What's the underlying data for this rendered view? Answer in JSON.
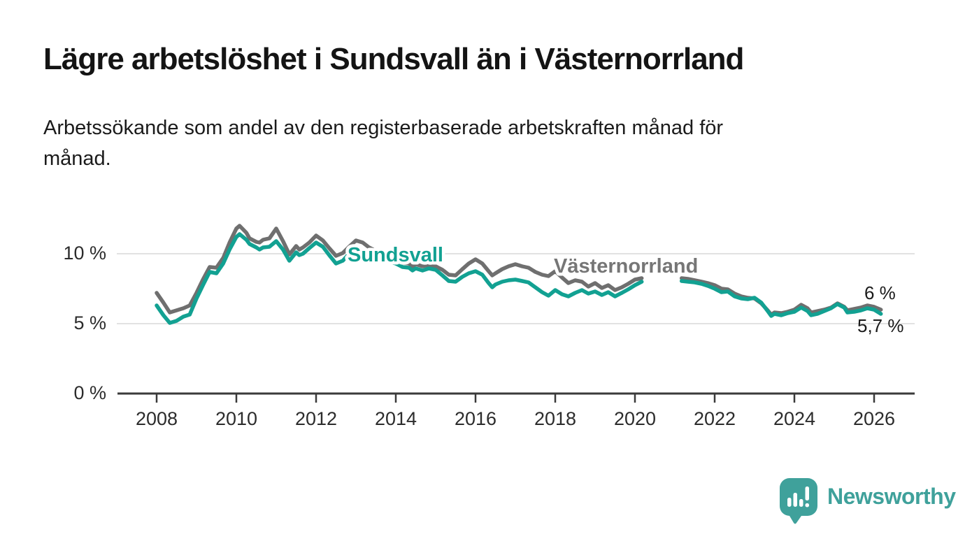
{
  "title": "Lägre arbetslöshet i Sundsvall än i Västernorrland",
  "subtitle": "Arbetssökande som andel av den registerbaserade arbetskraften månad för månad.",
  "annotations": {
    "vasternorrland_end": "6 %",
    "sundsvall_end": "5,7 %"
  },
  "footer": {
    "brand": "Newsworthy"
  },
  "colors": {
    "sundsvall": "#12a192",
    "vasternorrland": "#6f6f6f",
    "grid": "#d9d9d9",
    "axis": "#3a3a3a",
    "tick_text": "#2c2c2c",
    "brand": "#3fa19b",
    "text": "#1a1a1a"
  },
  "chart_data": {
    "type": "line",
    "unit": "%",
    "ylim": [
      0,
      12.6
    ],
    "grid": true,
    "legend_position": "inline-labels",
    "yticks": [
      {
        "value": 0,
        "label": "0 %"
      },
      {
        "value": 5,
        "label": "5 %"
      },
      {
        "value": 10,
        "label": "10 %"
      }
    ],
    "xticks": [
      2008,
      2010,
      2012,
      2014,
      2016,
      2018,
      2020,
      2022,
      2024,
      2026
    ],
    "data_gap_years": [
      2020.25,
      2021.1
    ],
    "x": [
      2008.0,
      2008.17,
      2008.33,
      2008.5,
      2008.67,
      2008.83,
      2009.0,
      2009.17,
      2009.33,
      2009.5,
      2009.67,
      2009.83,
      2010.0,
      2010.08,
      2010.25,
      2010.33,
      2010.5,
      2010.58,
      2010.67,
      2010.83,
      2011.0,
      2011.17,
      2011.33,
      2011.5,
      2011.58,
      2011.67,
      2011.83,
      2012.0,
      2012.17,
      2012.33,
      2012.5,
      2012.67,
      2012.83,
      2013.0,
      2013.17,
      2013.33,
      2013.5,
      2013.67,
      2013.83,
      2014.0,
      2014.17,
      2014.33,
      2014.42,
      2014.5,
      2014.67,
      2014.83,
      2015.0,
      2015.17,
      2015.33,
      2015.5,
      2015.67,
      2015.83,
      2016.0,
      2016.17,
      2016.33,
      2016.42,
      2016.5,
      2016.67,
      2016.83,
      2017.0,
      2017.17,
      2017.33,
      2017.5,
      2017.67,
      2017.83,
      2018.0,
      2018.17,
      2018.33,
      2018.5,
      2018.67,
      2018.83,
      2019.0,
      2019.17,
      2019.33,
      2019.5,
      2019.67,
      2019.83,
      2020.0,
      2020.17,
      2020.67,
      2021.17,
      2021.33,
      2021.5,
      2021.67,
      2021.83,
      2022.0,
      2022.17,
      2022.33,
      2022.5,
      2022.67,
      2022.83,
      2023.0,
      2023.17,
      2023.33,
      2023.42,
      2023.5,
      2023.67,
      2023.83,
      2024.0,
      2024.17,
      2024.33,
      2024.42,
      2024.58,
      2024.75,
      2024.92,
      2025.08,
      2025.25,
      2025.33,
      2025.5,
      2025.67,
      2025.83,
      2026.0,
      2026.17
    ],
    "series": [
      {
        "name": "Sundsvall",
        "color": "#12a192",
        "end_value_label": "5,7 %",
        "label_pos": {
          "x": 497,
          "y": 374
        },
        "values": [
          6.3,
          5.6,
          5.05,
          5.2,
          5.5,
          5.65,
          6.8,
          7.8,
          8.7,
          8.6,
          9.3,
          10.3,
          11.2,
          11.4,
          11.0,
          10.7,
          10.45,
          10.3,
          10.45,
          10.5,
          10.9,
          10.3,
          9.5,
          10.1,
          9.9,
          10.0,
          10.4,
          10.8,
          10.5,
          9.9,
          9.3,
          9.5,
          10.0,
          10.35,
          10.25,
          9.95,
          9.75,
          9.6,
          9.45,
          9.3,
          9.05,
          9.0,
          8.8,
          8.95,
          8.8,
          8.95,
          8.85,
          8.45,
          8.05,
          8.0,
          8.35,
          8.6,
          8.75,
          8.5,
          7.9,
          7.6,
          7.8,
          8.0,
          8.1,
          8.15,
          8.05,
          7.95,
          7.6,
          7.25,
          7.0,
          7.4,
          7.1,
          6.95,
          7.2,
          7.4,
          7.15,
          7.3,
          7.05,
          7.25,
          6.95,
          7.2,
          7.45,
          7.75,
          8.0,
          null,
          8.05,
          8.0,
          7.95,
          7.85,
          7.7,
          7.5,
          7.25,
          7.3,
          6.95,
          6.8,
          6.75,
          6.85,
          6.5,
          5.9,
          5.55,
          5.7,
          5.6,
          5.75,
          5.85,
          6.15,
          5.9,
          5.6,
          5.7,
          5.9,
          6.1,
          6.4,
          6.15,
          5.8,
          5.85,
          5.95,
          6.1,
          6.0,
          5.7
        ]
      },
      {
        "name": "Västernorrland",
        "color": "#6f6f6f",
        "label_color": "#767676",
        "end_value_label": "6 %",
        "label_pos": {
          "x": 792,
          "y": 390
        },
        "values": [
          7.2,
          6.5,
          5.8,
          5.95,
          6.1,
          6.3,
          7.2,
          8.2,
          9.05,
          9.0,
          9.7,
          10.8,
          11.8,
          12.0,
          11.5,
          11.1,
          10.85,
          10.8,
          11.0,
          11.1,
          11.8,
          10.9,
          9.95,
          10.55,
          10.3,
          10.45,
          10.8,
          11.3,
          10.95,
          10.4,
          9.85,
          10.05,
          10.5,
          10.95,
          10.8,
          10.45,
          10.2,
          10.05,
          9.8,
          9.6,
          9.35,
          9.3,
          9.1,
          9.25,
          9.1,
          9.2,
          9.1,
          8.85,
          8.5,
          8.45,
          8.9,
          9.3,
          9.6,
          9.3,
          8.75,
          8.45,
          8.6,
          8.9,
          9.1,
          9.25,
          9.1,
          9.0,
          8.7,
          8.5,
          8.4,
          8.75,
          8.3,
          7.9,
          8.1,
          8.0,
          7.65,
          7.9,
          7.55,
          7.75,
          7.4,
          7.6,
          7.85,
          8.15,
          8.25,
          null,
          8.25,
          8.2,
          8.1,
          8.0,
          7.9,
          7.75,
          7.5,
          7.45,
          7.15,
          6.95,
          6.85,
          6.8,
          6.45,
          5.95,
          5.65,
          5.8,
          5.75,
          5.85,
          6.0,
          6.35,
          6.1,
          5.8,
          5.9,
          6.0,
          6.15,
          6.45,
          6.2,
          5.95,
          6.05,
          6.15,
          6.3,
          6.2,
          6.0
        ]
      }
    ]
  }
}
